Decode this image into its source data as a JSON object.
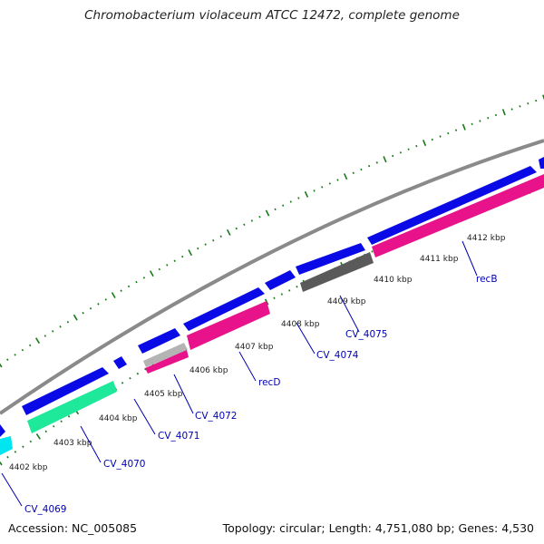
{
  "title": "Chromobacterium violaceum ATCC 12472, complete genome",
  "accession": "Accession: NC_005085",
  "summary": "Topology: circular; Length: 4,751,080 bp; Genes: 4,530",
  "colors": {
    "backbone": "#8a8a8a",
    "tick": "#1a7a1a",
    "cds_forward": "#0a0ae6",
    "gene_magenta": "#e8138a",
    "gene_green": "#1ee89a",
    "gene_cyan": "#00e6f0",
    "gene_gray": "#5a5a5a",
    "gene_lightgray": "#b4b4b4",
    "label": "#0000b0"
  },
  "tick_labels": [
    "4402 kbp",
    "4403 kbp",
    "4404 kbp",
    "4405 kbp",
    "4406 kbp",
    "4407 kbp",
    "4408 kbp",
    "4409 kbp",
    "4410 kbp",
    "4411 kbp",
    "4412 kbp"
  ],
  "gene_labels": [
    "CV_4069",
    "CV_4070",
    "CV_4071",
    "CV_4072",
    "recD",
    "CV_4074",
    "CV_4075",
    "recB"
  ]
}
